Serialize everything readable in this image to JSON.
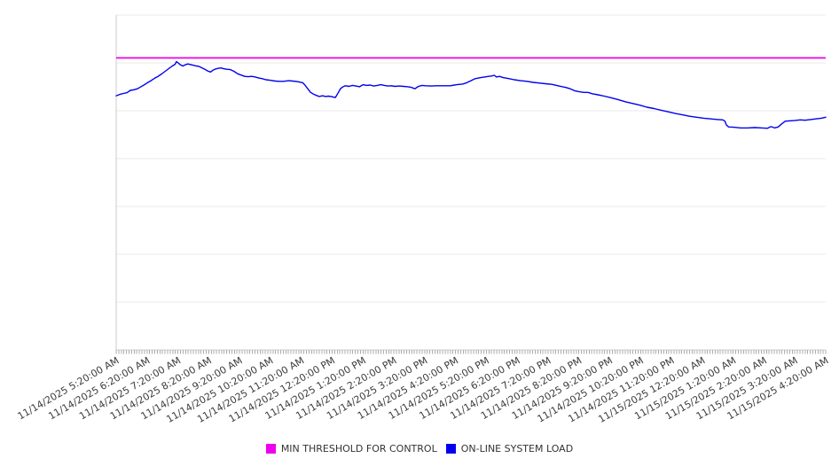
{
  "chart_data": {
    "type": "line",
    "title": "",
    "grid": true,
    "legend_position": "bottom-center",
    "x_labels": [
      "11/14/2025 5:20:00 AM",
      "11/14/2025 6:20:00 AM",
      "11/14/2025 7:20:00 AM",
      "11/14/2025 8:20:00 AM",
      "11/14/2025 9:20:00 AM",
      "11/14/2025 10:20:00 AM",
      "11/14/2025 11:20:00 AM",
      "11/14/2025 12:20:00 PM",
      "11/14/2025 1:20:00 PM",
      "11/14/2025 2:20:00 PM",
      "11/14/2025 3:20:00 PM",
      "11/14/2025 4:20:00 PM",
      "11/14/2025 5:20:00 PM",
      "11/14/2025 6:20:00 PM",
      "11/14/2025 7:20:00 PM",
      "11/14/2025 8:20:00 PM",
      "11/14/2025 9:20:00 PM",
      "11/14/2025 10:20:00 PM",
      "11/14/2025 11:20:00 PM",
      "11/15/2025 12:20:00 AM",
      "11/15/2025 1:20:00 AM",
      "11/15/2025 2:20:00 AM",
      "11/15/2025 3:20:00 AM",
      "11/15/2025 4:20:00 AM"
    ],
    "x_axis": {
      "label_rotation_deg": -30,
      "minor_tick_count": 277
    },
    "y_axis": {
      "labels_visible": false,
      "gridline_count": 8
    },
    "colors": {
      "grid": "#eaeaea",
      "axis": "#cccccc",
      "tick": "#adadad",
      "label": "#3c3c3c"
    },
    "y_unit": "percent_of_plot_height",
    "series": [
      {
        "name": "MIN THRESHOLD FOR CONTROL",
        "color": "#EE00EE",
        "style": "horizontal-threshold",
        "value_pct": 87.2
      },
      {
        "name": "ON-LINE SYSTEM LOAD",
        "color": "#0000EE",
        "style": "line",
        "points": [
          [
            0,
            75.9
          ],
          [
            0.5,
            76.3
          ],
          [
            1,
            76.6
          ],
          [
            1.5,
            76.8
          ],
          [
            2,
            77.5
          ],
          [
            2.5,
            77.7
          ],
          [
            3,
            78
          ],
          [
            3.4,
            78.5
          ],
          [
            3.9,
            79.1
          ],
          [
            4.4,
            79.8
          ],
          [
            4.9,
            80.4
          ],
          [
            5.4,
            81.1
          ],
          [
            5.9,
            81.7
          ],
          [
            6.4,
            82.4
          ],
          [
            6.9,
            83.2
          ],
          [
            7.4,
            84
          ],
          [
            7.9,
            84.8
          ],
          [
            8.3,
            85.3
          ],
          [
            8.5,
            86.1
          ],
          [
            8.8,
            85.6
          ],
          [
            9,
            85.2
          ],
          [
            9.4,
            84.8
          ],
          [
            9.8,
            85.2
          ],
          [
            10.1,
            85.4
          ],
          [
            10.5,
            85.2
          ],
          [
            10.9,
            85
          ],
          [
            11.3,
            84.8
          ],
          [
            11.6,
            84.7
          ],
          [
            12,
            84.3
          ],
          [
            12.5,
            83.8
          ],
          [
            12.9,
            83.3
          ],
          [
            13.3,
            83
          ],
          [
            13.6,
            83.5
          ],
          [
            14,
            83.9
          ],
          [
            14.4,
            84.1
          ],
          [
            14.8,
            84.2
          ],
          [
            15.1,
            84
          ],
          [
            15.6,
            83.8
          ],
          [
            16.1,
            83.7
          ],
          [
            16.6,
            83.2
          ],
          [
            17.1,
            82.5
          ],
          [
            17.6,
            82.1
          ],
          [
            18.1,
            81.7
          ],
          [
            18.6,
            81.6
          ],
          [
            19.1,
            81.7
          ],
          [
            19.6,
            81.5
          ],
          [
            20.1,
            81.2
          ],
          [
            20.6,
            81
          ],
          [
            21.1,
            80.7
          ],
          [
            21.8,
            80.5
          ],
          [
            22.4,
            80.3
          ],
          [
            23,
            80.2
          ],
          [
            23.6,
            80.2
          ],
          [
            24.3,
            80.4
          ],
          [
            24.9,
            80.3
          ],
          [
            25.6,
            80.1
          ],
          [
            26.3,
            79.8
          ],
          [
            26.6,
            79.1
          ],
          [
            27,
            78
          ],
          [
            27.4,
            76.9
          ],
          [
            27.8,
            76.4
          ],
          [
            28.1,
            76.1
          ],
          [
            28.6,
            75.7
          ],
          [
            29.1,
            75.9
          ],
          [
            29.5,
            75.7
          ],
          [
            29.9,
            75.8
          ],
          [
            30.3,
            75.7
          ],
          [
            30.6,
            75.5
          ],
          [
            30.9,
            75.4
          ],
          [
            31.1,
            76.1
          ],
          [
            31.4,
            77.2
          ],
          [
            31.6,
            78
          ],
          [
            31.9,
            78.5
          ],
          [
            32.3,
            78.9
          ],
          [
            32.8,
            78.7
          ],
          [
            33.3,
            79
          ],
          [
            33.8,
            78.8
          ],
          [
            34.3,
            78.6
          ],
          [
            34.8,
            79.2
          ],
          [
            35.3,
            79
          ],
          [
            35.8,
            79.1
          ],
          [
            36.3,
            78.8
          ],
          [
            36.8,
            79
          ],
          [
            37.3,
            79.2
          ],
          [
            37.8,
            79
          ],
          [
            38.3,
            78.8
          ],
          [
            38.8,
            78.9
          ],
          [
            39.3,
            78.7
          ],
          [
            39.9,
            78.8
          ],
          [
            40.5,
            78.7
          ],
          [
            41.1,
            78.6
          ],
          [
            41.6,
            78.4
          ],
          [
            42.1,
            78
          ],
          [
            42.6,
            78.7
          ],
          [
            43.1,
            79
          ],
          [
            43.6,
            78.9
          ],
          [
            44.4,
            78.8
          ],
          [
            45.1,
            78.9
          ],
          [
            46.1,
            78.9
          ],
          [
            47.1,
            78.9
          ],
          [
            48,
            79.2
          ],
          [
            48.8,
            79.4
          ],
          [
            49.4,
            79.8
          ],
          [
            50,
            80.4
          ],
          [
            50.6,
            81
          ],
          [
            51.3,
            81.3
          ],
          [
            51.9,
            81.5
          ],
          [
            52.5,
            81.7
          ],
          [
            52.9,
            81.8
          ],
          [
            53.3,
            82
          ],
          [
            53.6,
            81.5
          ],
          [
            54,
            81.7
          ],
          [
            54.6,
            81.3
          ],
          [
            55.4,
            81
          ],
          [
            56.1,
            80.7
          ],
          [
            57,
            80.4
          ],
          [
            57.9,
            80.2
          ],
          [
            58.8,
            79.9
          ],
          [
            59.6,
            79.7
          ],
          [
            60.5,
            79.5
          ],
          [
            61.4,
            79.3
          ],
          [
            62.4,
            78.8
          ],
          [
            63.3,
            78.4
          ],
          [
            64,
            78
          ],
          [
            64.6,
            77.4
          ],
          [
            65.3,
            77.1
          ],
          [
            65.9,
            76.9
          ],
          [
            66.5,
            76.9
          ],
          [
            67.1,
            76.5
          ],
          [
            67.9,
            76.2
          ],
          [
            68.8,
            75.8
          ],
          [
            69.8,
            75.3
          ],
          [
            70.8,
            74.7
          ],
          [
            71.8,
            74.1
          ],
          [
            72.8,
            73.6
          ],
          [
            73.8,
            73.1
          ],
          [
            74.8,
            72.5
          ],
          [
            75.8,
            72.1
          ],
          [
            76.8,
            71.6
          ],
          [
            77.8,
            71.1
          ],
          [
            78.8,
            70.6
          ],
          [
            79.8,
            70.2
          ],
          [
            80.8,
            69.8
          ],
          [
            81.8,
            69.5
          ],
          [
            82.8,
            69.2
          ],
          [
            83.8,
            69
          ],
          [
            84.8,
            68.8
          ],
          [
            85.5,
            68.7
          ],
          [
            85.8,
            68.3
          ],
          [
            86,
            67.2
          ],
          [
            86.3,
            66.6
          ],
          [
            87,
            66.5
          ],
          [
            88,
            66.3
          ],
          [
            89,
            66.3
          ],
          [
            90,
            66.4
          ],
          [
            91,
            66.3
          ],
          [
            91.8,
            66.2
          ],
          [
            92.3,
            66.7
          ],
          [
            92.8,
            66.3
          ],
          [
            93.3,
            66.6
          ],
          [
            93.8,
            67.5
          ],
          [
            94.3,
            68.3
          ],
          [
            94.9,
            68.4
          ],
          [
            95.6,
            68.5
          ],
          [
            96.4,
            68.7
          ],
          [
            97.1,
            68.6
          ],
          [
            97.9,
            68.8
          ],
          [
            98.6,
            69
          ],
          [
            99.4,
            69.2
          ],
          [
            100,
            69.5
          ]
        ]
      }
    ]
  }
}
